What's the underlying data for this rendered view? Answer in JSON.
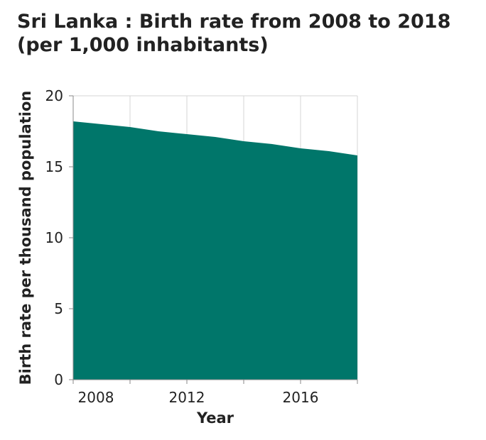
{
  "title": {
    "line1": "Sri Lanka : Birth rate from 2008 to 2018",
    "line2": "(per 1,000 inhabitants)"
  },
  "colors": {
    "area": "#00766a",
    "grid": "#d4d4d4",
    "axis": "#888888"
  },
  "chart_data": {
    "type": "area",
    "title": "Sri Lanka : Birth rate from 2008 to 2018 (per 1,000 inhabitants)",
    "xlabel": "Year",
    "ylabel": "Birth rate per thousand population",
    "x": [
      2008,
      2009,
      2010,
      2011,
      2012,
      2013,
      2014,
      2015,
      2016,
      2017,
      2018
    ],
    "values": [
      18.2,
      18.0,
      17.8,
      17.5,
      17.3,
      17.1,
      16.8,
      16.6,
      16.3,
      16.1,
      15.8
    ],
    "xlim": [
      2008,
      2018
    ],
    "ylim": [
      0,
      20
    ],
    "xticks": [
      "2008",
      "2012",
      "2016"
    ],
    "yticks": [
      "0",
      "5",
      "10",
      "15",
      "20"
    ],
    "grid": true,
    "legend": "none"
  }
}
